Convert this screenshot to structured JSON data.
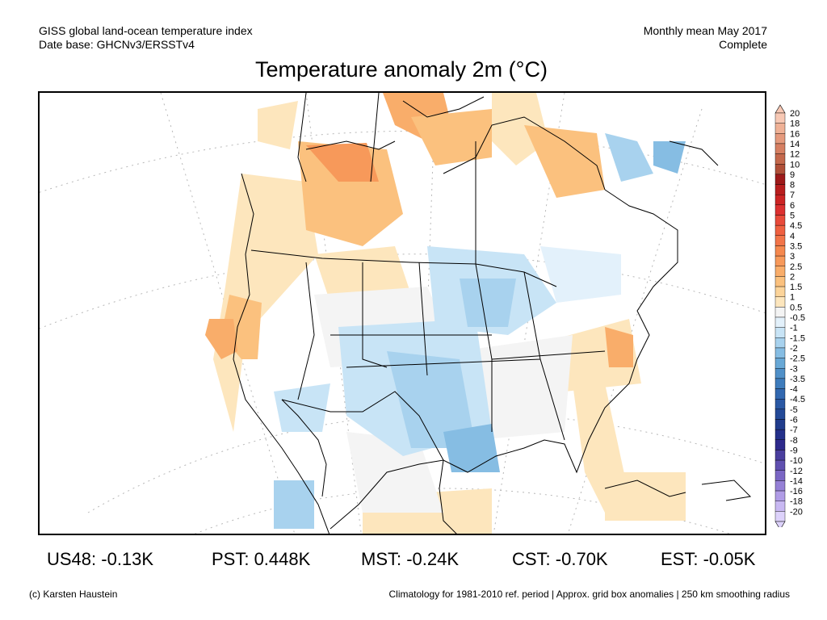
{
  "header": {
    "line1": "GISS global land-ocean temperature index",
    "line2": "Date base: GHCNv3/ERSSTv4",
    "right1": "Monthly mean May 2017",
    "right2": "Complete"
  },
  "title": "Temperature anomaly 2m (°C)",
  "colorbar": {
    "levels": [
      {
        "label": "20",
        "color": "#f7c8b4"
      },
      {
        "label": "18",
        "color": "#efb196"
      },
      {
        "label": "16",
        "color": "#e59a7d"
      },
      {
        "label": "14",
        "color": "#d67f62"
      },
      {
        "label": "12",
        "color": "#c4684c"
      },
      {
        "label": "10",
        "color": "#b04f38"
      },
      {
        "label": "9",
        "color": "#9e1a1a"
      },
      {
        "label": "8",
        "color": "#b81e1e"
      },
      {
        "label": "7",
        "color": "#cc2424"
      },
      {
        "label": "6",
        "color": "#dc3030"
      },
      {
        "label": "5",
        "color": "#e84a3a"
      },
      {
        "label": "4.5",
        "color": "#ef6040"
      },
      {
        "label": "4",
        "color": "#f27448"
      },
      {
        "label": "3.5",
        "color": "#f5884e"
      },
      {
        "label": "3",
        "color": "#f7995a"
      },
      {
        "label": "2.5",
        "color": "#f9ad6a"
      },
      {
        "label": "2",
        "color": "#fbc17e"
      },
      {
        "label": "1.5",
        "color": "#fcd49a"
      },
      {
        "label": "1",
        "color": "#fde6bd"
      },
      {
        "label": "0.5",
        "color": "#f4f4f4"
      },
      {
        "label": "-0.5",
        "color": "#e3f1fb"
      },
      {
        "label": "-1",
        "color": "#c8e4f6"
      },
      {
        "label": "-1.5",
        "color": "#a8d2ee"
      },
      {
        "label": "-2",
        "color": "#86bde3"
      },
      {
        "label": "-2.5",
        "color": "#68a8d6"
      },
      {
        "label": "-3",
        "color": "#5090c8"
      },
      {
        "label": "-3.5",
        "color": "#3e7cbc"
      },
      {
        "label": "-4",
        "color": "#3268b0"
      },
      {
        "label": "-4.5",
        "color": "#2a58a4"
      },
      {
        "label": "-5",
        "color": "#244a98"
      },
      {
        "label": "-6",
        "color": "#203c8c"
      },
      {
        "label": "-7",
        "color": "#24308a"
      },
      {
        "label": "-8",
        "color": "#2e2a8c"
      },
      {
        "label": "-9",
        "color": "#4a3e9e"
      },
      {
        "label": "-10",
        "color": "#6050b0"
      },
      {
        "label": "-12",
        "color": "#7a66c4"
      },
      {
        "label": "-14",
        "color": "#9580d6"
      },
      {
        "label": "-16",
        "color": "#b09ce6"
      },
      {
        "label": "-18",
        "color": "#c8b8f2"
      },
      {
        "label": "-20",
        "color": "#ddd2fb"
      }
    ]
  },
  "stats": [
    {
      "label": "US48: -0.13K"
    },
    {
      "label": "PST: 0.448K"
    },
    {
      "label": "MST: -0.24K"
    },
    {
      "label": "CST: -0.70K"
    },
    {
      "label": "EST: -0.05K"
    }
  ],
  "footer": {
    "left": "(c) Karsten Haustein",
    "right": "Climatology for 1981-2010 ref. period | Approx. grid box anomalies | 250 km smoothing radius"
  }
}
